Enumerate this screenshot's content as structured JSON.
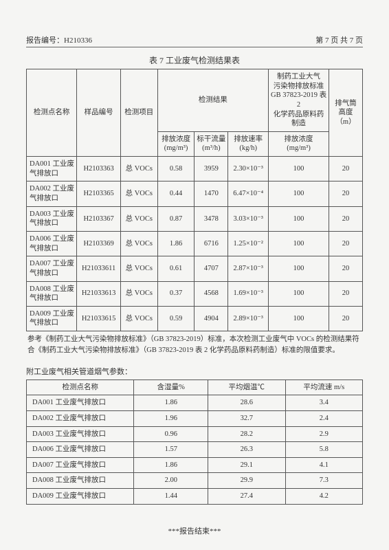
{
  "header": {
    "report_label": "报告编号：",
    "report_no": "H210336",
    "page_info": "第 7 页  共 7 页"
  },
  "table1": {
    "title": "表 7    工业废气检测结果表",
    "headers": {
      "point_name": "检测点名称",
      "sample_no": "样品编号",
      "test_item": "检测项目",
      "result_group": "检测结果",
      "standard_group_l1": "制药工业大气",
      "standard_group_l2": "污染物排放标准",
      "standard_group_l3": "GB 37823-2019  表 2",
      "standard_group_l4": "化学药品原料药制造",
      "height_l1": "排气筒",
      "height_l2": "高度",
      "height_l3": "（m）",
      "emission_conc": "排放浓度",
      "emission_conc_unit": "(mg/m³)",
      "dry_flow": "标干流量",
      "dry_flow_unit": "(m³/h)",
      "emission_rate": "排放速率",
      "emission_rate_unit": "(kg/h)",
      "std_conc": "排放浓度",
      "std_conc_unit": "(mg/m³)"
    },
    "rows": [
      {
        "point": "DA001 工业废气排放口",
        "sample": "H2103363",
        "item": "总 VOCs",
        "conc": "0.58",
        "flow": "3959",
        "rate": "2.30×10⁻³",
        "std": "100",
        "height": "20"
      },
      {
        "point": "DA002 工业废气排放口",
        "sample": "H2103365",
        "item": "总 VOCs",
        "conc": "0.44",
        "flow": "1470",
        "rate": "6.47×10⁻⁴",
        "std": "100",
        "height": "20"
      },
      {
        "point": "DA003 工业废气排放口",
        "sample": "H2103367",
        "item": "总 VOCs",
        "conc": "0.87",
        "flow": "3478",
        "rate": "3.03×10⁻³",
        "std": "100",
        "height": "20"
      },
      {
        "point": "DA006 工业废气排放口",
        "sample": "H2103369",
        "item": "总 VOCs",
        "conc": "1.86",
        "flow": "6716",
        "rate": "1.25×10⁻²",
        "std": "100",
        "height": "20"
      },
      {
        "point": "DA007 工业废气排放口",
        "sample": "H21033611",
        "item": "总 VOCs",
        "conc": "0.61",
        "flow": "4707",
        "rate": "2.87×10⁻³",
        "std": "100",
        "height": "20"
      },
      {
        "point": "DA008 工业废气排放口",
        "sample": "H21033613",
        "item": "总 VOCs",
        "conc": "0.37",
        "flow": "4568",
        "rate": "1.69×10⁻³",
        "std": "100",
        "height": "20"
      },
      {
        "point": "DA009 工业废气排放口",
        "sample": "H21033615",
        "item": "总 VOCs",
        "conc": "0.59",
        "flow": "4904",
        "rate": "2.89×10⁻³",
        "std": "100",
        "height": "20"
      }
    ]
  },
  "note": "参考《制药工业大气污染物排放标准》（GB 37823-2019）标准，本次检测工业废气中 VOCs 的检测结果符合《制药工业大气污染物排放标准》（GB 37823-2019  表 2 化学药品原料药制造）标准的限值要求。",
  "table2": {
    "section_title": "附工业废气相关管道烟气参数：",
    "headers": {
      "point_name": "检测点名称",
      "humidity": "含湿量%",
      "temp": "平均烟温℃",
      "velocity": "平均流速 m/s"
    },
    "rows": [
      {
        "point": "DA001 工业废气排放口",
        "hum": "1.86",
        "temp": "28.6",
        "vel": "3.4"
      },
      {
        "point": "DA002 工业废气排放口",
        "hum": "1.96",
        "temp": "32.7",
        "vel": "2.4"
      },
      {
        "point": "DA003 工业废气排放口",
        "hum": "0.96",
        "temp": "28.2",
        "vel": "2.9"
      },
      {
        "point": "DA006 工业废气排放口",
        "hum": "1.57",
        "temp": "26.3",
        "vel": "5.8"
      },
      {
        "point": "DA007 工业废气排放口",
        "hum": "1.86",
        "temp": "29.1",
        "vel": "4.1"
      },
      {
        "point": "DA008 工业废气排放口",
        "hum": "2.00",
        "temp": "29.9",
        "vel": "7.3"
      },
      {
        "point": "DA009 工业废气排放口",
        "hum": "1.44",
        "temp": "27.4",
        "vel": "4.2"
      }
    ]
  },
  "footer": "***报告结束***"
}
